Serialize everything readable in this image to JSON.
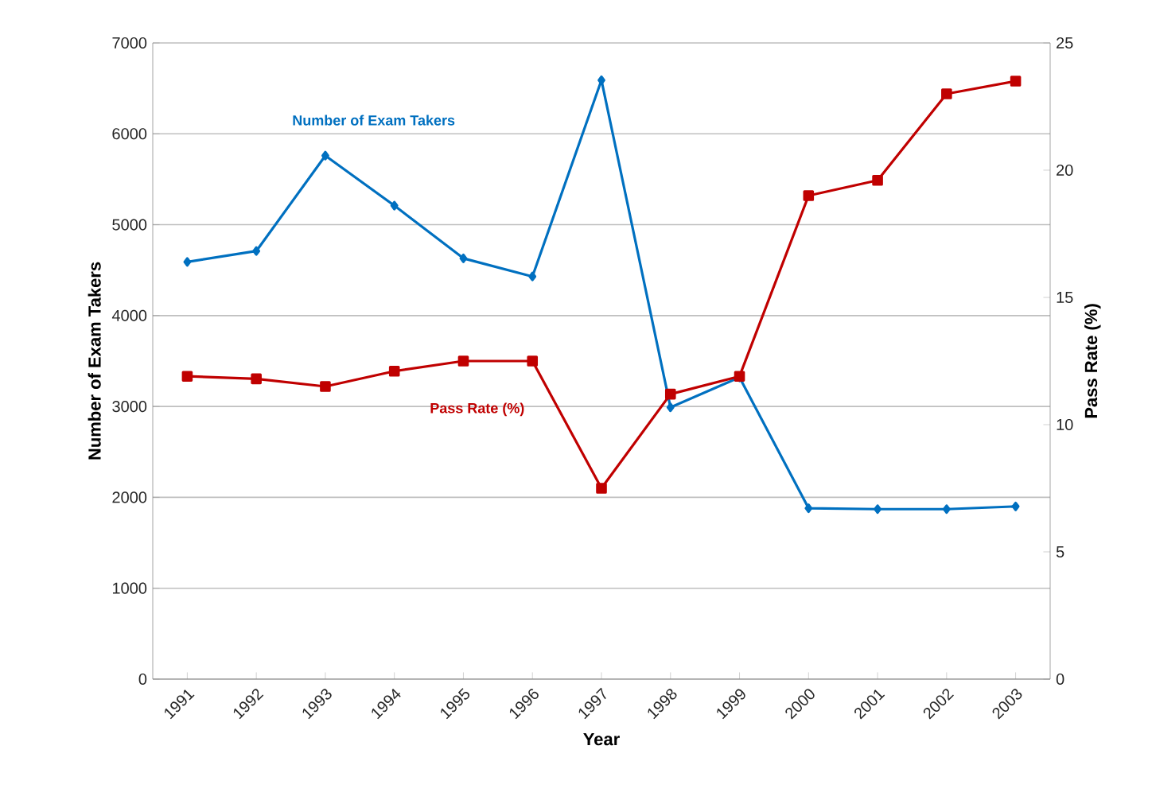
{
  "chart_data": {
    "type": "line",
    "xlabel": "Year",
    "ylabel": "Number of Exam Takers",
    "y2label": "Pass Rate (%)",
    "categories": [
      "1991",
      "1992",
      "1993",
      "1994",
      "1995",
      "1996",
      "1997",
      "1998",
      "1999",
      "2000",
      "2001",
      "2002",
      "2003"
    ],
    "series": [
      {
        "name": "Number of Exam Takers",
        "color": "#0070c0",
        "marker": "diamond",
        "values": [
          4590,
          4710,
          5760,
          5210,
          4630,
          4430,
          6590,
          2990,
          3320,
          1880,
          1870,
          1870,
          1900
        ]
      },
      {
        "name": "Pass Rate (%)",
        "color": "#c00000",
        "marker": "square",
        "axis": "y2",
        "values": [
          11.9,
          11.8,
          11.5,
          12.1,
          12.5,
          12.5,
          7.5,
          11.2,
          11.9,
          19.0,
          19.6,
          23.0,
          23.5
        ]
      }
    ],
    "ylim": [
      0,
      7000
    ],
    "yticks": [
      0,
      1000,
      2000,
      3000,
      4000,
      5000,
      6000,
      7000
    ],
    "y2lim": [
      0,
      25
    ],
    "y2ticks": [
      0,
      5,
      10,
      15,
      20,
      25
    ],
    "grid": "y"
  }
}
